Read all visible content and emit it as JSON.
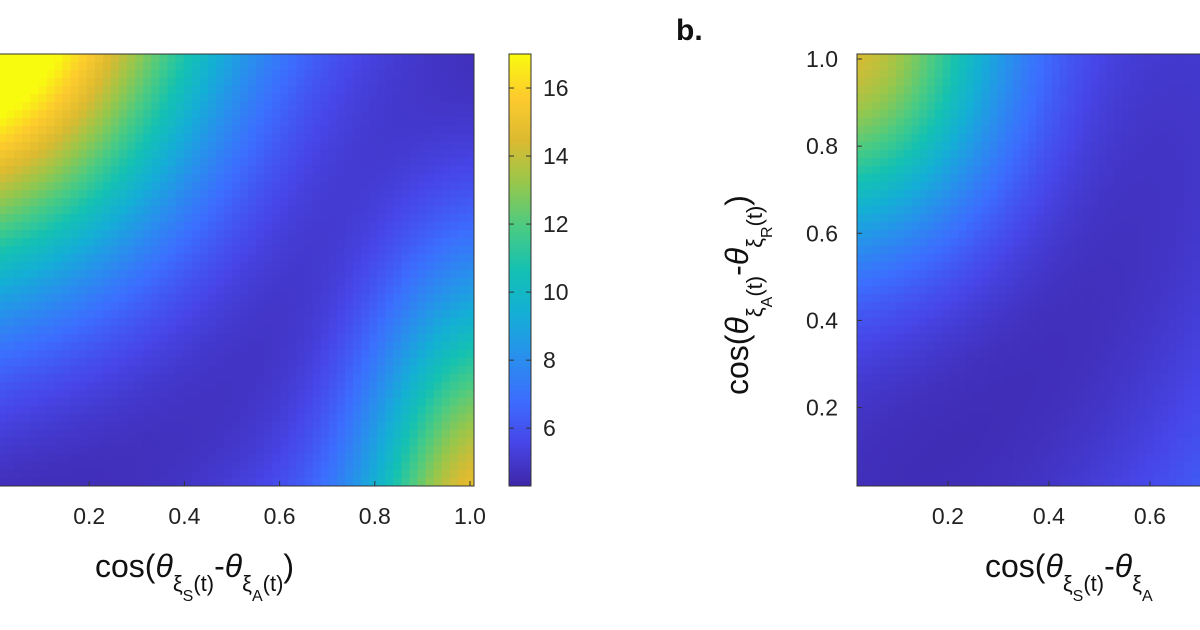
{
  "chart_data": [
    {
      "type": "heatmap",
      "panel": "a",
      "xlabel": "cos(θ_ξS(t) - θ_ξA(t))",
      "ylabel": "",
      "x_ticks": [
        "0.2",
        "0.4",
        "0.6",
        "0.8",
        "1.0"
      ],
      "x_tick_values": [
        0.2,
        0.4,
        0.6,
        0.8,
        1.0
      ],
      "xlim": [
        0.0,
        1.0
      ],
      "ylim": [
        0.0,
        1.0
      ],
      "colorbar": {
        "ticks": [
          "6",
          "8",
          "10",
          "12",
          "14",
          "16"
        ],
        "tick_values": [
          6,
          8,
          10,
          12,
          14,
          16
        ],
        "range": [
          4.3,
          17.0
        ]
      },
      "colormap": "parula",
      "description_values": {
        "min_value": 4.3,
        "max_value": 17.0,
        "top_left_value": 15.5,
        "bottom_right_value": 15.0
      }
    },
    {
      "type": "heatmap",
      "panel": "b",
      "panel_label": "b.",
      "xlabel": "cos(θ_ξS(t) - θ_ξA",
      "ylabel": "cos(θ_ξA(t) - θ_ξR(t))",
      "x_ticks": [
        "0.2",
        "0.4",
        "0.6"
      ],
      "x_tick_values": [
        0.2,
        0.4,
        0.6
      ],
      "y_ticks": [
        "1.0",
        "0.8",
        "0.6",
        "0.4",
        "0.2"
      ],
      "y_tick_values": [
        1.0,
        0.8,
        0.6,
        0.4,
        0.2
      ],
      "colormap": "parula"
    }
  ],
  "colors": {
    "background": "#ffffff",
    "low": "#3e26a8",
    "high": "#f9fb0e"
  }
}
